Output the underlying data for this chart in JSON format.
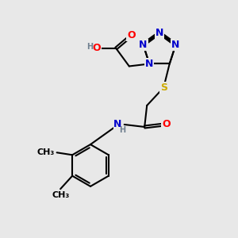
{
  "background_color": "#e8e8e8",
  "atom_colors": {
    "C": "#000000",
    "N": "#0000cc",
    "O": "#ff0000",
    "S": "#ccaa00",
    "H": "#708090"
  },
  "bond_color": "#000000",
  "bond_width": 1.5,
  "font_size_atom": 9,
  "font_size_small": 8,
  "font_size_h": 7
}
